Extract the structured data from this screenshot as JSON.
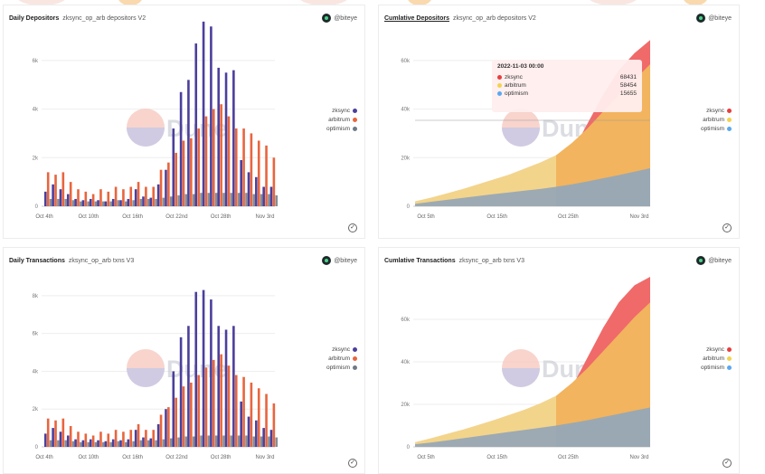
{
  "colors": {
    "zksync_bar": "#4b3f9c",
    "arbitrum_bar": "#e8653e",
    "optimism_bar": "#6e7a86",
    "zksync_area": "#f06a6a",
    "arbitrum_area": "#f2b45e",
    "optimism_area": "#9aa8b3",
    "arbitrum_light": "#f4eeb0"
  },
  "legend_icon_colors": {
    "top_left": [
      "#4b3f9c",
      "#e8653e",
      "#6e7a86"
    ],
    "bottom_left": [
      "#4b3f9c",
      "#e8653e",
      "#6e7a86"
    ],
    "top_right": [
      "#e83d3d",
      "#f2d34e",
      "#5aa8f0"
    ],
    "bottom_right": [
      "#e83d3d",
      "#f2d34e",
      "#5aa8f0"
    ]
  },
  "panels": {
    "daily_depositors": {
      "title": "Daily Depositors",
      "subtitle": "zksync_op_arb depositors V2",
      "author": "@biteye"
    },
    "cumulative_depositors": {
      "title": "Cumlative Depositors",
      "subtitle": "zksync_op_arb depositors V2",
      "author": "@biteye"
    },
    "daily_transactions": {
      "title": "Daily Transactions",
      "subtitle": "zksync_op_arb txns V3",
      "author": "@biteye"
    },
    "cumulative_transactions": {
      "title": "Cumlative Transactions",
      "subtitle": "zksync_op_arb txns V3",
      "author": "@biteye"
    }
  },
  "watermark": "Dune",
  "legend_labels": [
    "zksync",
    "arbitrum",
    "optimism"
  ],
  "tooltip": {
    "date": "2022-11-03 00:00",
    "rows": [
      {
        "name": "zksync",
        "value": "68431"
      },
      {
        "name": "arbitrum",
        "value": "58454"
      },
      {
        "name": "optimism",
        "value": "15655"
      }
    ]
  },
  "chart_data": [
    {
      "id": "daily_depositors",
      "type": "bar",
      "title": "Daily Depositors",
      "categories_ticks": [
        "Oct 4th",
        "Oct 10th",
        "Oct 16th",
        "Oct 22nd",
        "Oct 28th",
        "Nov 3rd"
      ],
      "ylim": [
        0,
        7000
      ],
      "ytick_values": [
        0,
        2000,
        4000,
        6000
      ],
      "ytick_labels": [
        "0",
        "2k",
        "4k",
        "6k"
      ],
      "series": [
        {
          "name": "zksync",
          "values": [
            600,
            900,
            700,
            500,
            300,
            250,
            300,
            250,
            200,
            300,
            250,
            300,
            700,
            400,
            350,
            900,
            1500,
            3200,
            4700,
            5200,
            6700,
            7600,
            7400,
            5700,
            5500,
            5600,
            1900,
            1400,
            1200,
            800,
            800
          ]
        },
        {
          "name": "arbitrum",
          "values": [
            1400,
            1300,
            1400,
            1000,
            700,
            600,
            500,
            700,
            600,
            800,
            700,
            800,
            1000,
            800,
            800,
            1500,
            1800,
            2200,
            2700,
            2800,
            3200,
            3700,
            4000,
            4200,
            3700,
            3200,
            3200,
            3000,
            2700,
            2500,
            2000
          ]
        },
        {
          "name": "optimism",
          "values": [
            300,
            300,
            300,
            250,
            200,
            200,
            200,
            200,
            200,
            250,
            200,
            250,
            300,
            300,
            300,
            350,
            400,
            450,
            500,
            500,
            550,
            550,
            550,
            550,
            550,
            550,
            550,
            500,
            500,
            500,
            450
          ]
        }
      ]
    },
    {
      "id": "cumulative_depositors",
      "type": "area",
      "title": "Cumlative Depositors",
      "x_ticks": [
        "Oct 5th",
        "Oct 15th",
        "Oct 25th",
        "Nov 3rd"
      ],
      "ylim": [
        0,
        70000
      ],
      "ytick_values": [
        0,
        20000,
        40000,
        60000
      ],
      "ytick_labels": [
        "0",
        "20k",
        "40k",
        "60k"
      ],
      "series": [
        {
          "name": "optimism",
          "values": [
            1000,
            1800,
            2600,
            3400,
            4200,
            5000,
            5700,
            6400,
            7100,
            8000,
            9000,
            10200,
            11500,
            12800,
            14200,
            15655
          ]
        },
        {
          "name": "arbitrum",
          "values": [
            2000,
            3500,
            5200,
            7000,
            9000,
            11000,
            13000,
            15500,
            18000,
            21000,
            26000,
            32000,
            39000,
            46000,
            52000,
            58454
          ]
        },
        {
          "name": "zksync",
          "values": [
            1000,
            1800,
            2600,
            3400,
            4300,
            5200,
            6400,
            7800,
            10000,
            14000,
            22000,
            34000,
            46000,
            56000,
            63000,
            68431
          ]
        }
      ]
    },
    {
      "id": "daily_transactions",
      "type": "bar",
      "title": "Daily Transactions",
      "categories_ticks": [
        "Oct 4th",
        "Oct 10th",
        "Oct 16th",
        "Oct 22nd",
        "Oct 28th",
        "Nov 3rd"
      ],
      "ylim": [
        0,
        9000
      ],
      "ytick_values": [
        0,
        2000,
        4000,
        6000,
        8000
      ],
      "ytick_labels": [
        "0",
        "2k",
        "4k",
        "6k",
        "8k"
      ],
      "series": [
        {
          "name": "zksync",
          "values": [
            700,
            1000,
            800,
            600,
            400,
            350,
            400,
            350,
            300,
            400,
            350,
            400,
            900,
            500,
            450,
            1200,
            2000,
            4000,
            5800,
            6400,
            8200,
            8300,
            7800,
            6400,
            6200,
            6400,
            2400,
            1600,
            1400,
            1000,
            900
          ]
        },
        {
          "name": "arbitrum",
          "values": [
            1500,
            1400,
            1500,
            1100,
            800,
            700,
            600,
            800,
            700,
            900,
            800,
            900,
            1200,
            900,
            900,
            1700,
            2100,
            2600,
            3200,
            3400,
            3800,
            4200,
            4600,
            4900,
            4300,
            3800,
            3700,
            3400,
            3100,
            2800,
            2300
          ]
        },
        {
          "name": "optimism",
          "values": [
            350,
            350,
            350,
            300,
            250,
            250,
            250,
            250,
            250,
            300,
            250,
            300,
            350,
            350,
            350,
            400,
            450,
            500,
            550,
            550,
            600,
            600,
            600,
            600,
            600,
            600,
            600,
            550,
            550,
            550,
            500
          ]
        }
      ]
    },
    {
      "id": "cumulative_transactions",
      "type": "area",
      "title": "Cumlative Transactions",
      "x_ticks": [
        "Oct 5th",
        "Oct 15th",
        "Oct 25th",
        "Nov 3rd"
      ],
      "ylim": [
        0,
        80000
      ],
      "ytick_values": [
        0,
        20000,
        40000,
        60000
      ],
      "ytick_labels": [
        "0",
        "20k",
        "40k",
        "60k"
      ],
      "series": [
        {
          "name": "optimism",
          "values": [
            1200,
            2000,
            3000,
            4000,
            5000,
            6000,
            7000,
            8000,
            9000,
            10000,
            11200,
            12500,
            14000,
            15500,
            17000,
            18500
          ]
        },
        {
          "name": "arbitrum",
          "values": [
            2200,
            4000,
            6000,
            8000,
            10200,
            12500,
            15000,
            17500,
            20500,
            24000,
            30000,
            37000,
            45000,
            53000,
            61000,
            68000
          ]
        },
        {
          "name": "zksync",
          "values": [
            1200,
            2000,
            3000,
            4000,
            5000,
            6200,
            7600,
            9500,
            12500,
            18000,
            28000,
            42000,
            56000,
            68000,
            76000,
            80000
          ]
        }
      ]
    }
  ]
}
